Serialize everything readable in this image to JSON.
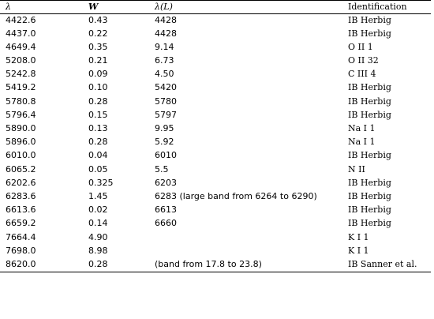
{
  "headers": {
    "lambda": "λ",
    "w": "W",
    "lambda_l": "λ(L)",
    "identification": "Identification"
  },
  "rows": [
    {
      "lambda": "4422.6",
      "w": "0.43",
      "lambda_l": "4428",
      "id": "IB Herbig"
    },
    {
      "lambda": "4437.0",
      "w": "0.22",
      "lambda_l": "4428",
      "id": "IB Herbig"
    },
    {
      "lambda": "4649.4",
      "w": "0.35",
      "lambda_l": "9.14",
      "id": "O II 1"
    },
    {
      "lambda": "5208.0",
      "w": "0.21",
      "lambda_l": "6.73",
      "id": "O II 32"
    },
    {
      "lambda": "5242.8",
      "w": "0.09",
      "lambda_l": "4.50",
      "id": "C III 4"
    },
    {
      "lambda": "5419.2",
      "w": "0.10",
      "lambda_l": "5420",
      "id": "IB Herbig"
    },
    {
      "lambda": "5780.8",
      "w": "0.28",
      "lambda_l": "5780",
      "id": "IB Herbig"
    },
    {
      "lambda": "5796.4",
      "w": "0.15",
      "lambda_l": "5797",
      "id": "IB Herbig"
    },
    {
      "lambda": "5890.0",
      "w": "0.13",
      "lambda_l": "9.95",
      "id": "Na I 1"
    },
    {
      "lambda": "5896.0",
      "w": "0.28",
      "lambda_l": "5.92",
      "id": "Na I 1"
    },
    {
      "lambda": "6010.0",
      "w": "0.04",
      "lambda_l": "6010",
      "id": "IB Herbig"
    },
    {
      "lambda": "6065.2",
      "w": "0.05",
      "lambda_l": "5.5",
      "id": "N II"
    },
    {
      "lambda": "6202.6",
      "w": "0.325",
      "lambda_l": "6203",
      "id": "IB Herbig"
    },
    {
      "lambda": "6283.6",
      "w": "1.45",
      "lambda_l": "6283 (large band from 6264 to 6290)",
      "id": "IB Herbig"
    },
    {
      "lambda": "6613.6",
      "w": "0.02",
      "lambda_l": "6613",
      "id": "IB Herbig"
    },
    {
      "lambda": "6659.2",
      "w": "0.14",
      "lambda_l": "6660",
      "id": "IB Herbig"
    },
    {
      "lambda": "7664.4",
      "w": "4.90",
      "lambda_l": "",
      "id": "K I 1"
    },
    {
      "lambda": "7698.0",
      "w": "8.98",
      "lambda_l": "",
      "id": "K I 1"
    },
    {
      "lambda": "8620.0",
      "w": "0.28",
      "lambda_l": "(band from 17.8 to 23.8)",
      "id": "IB Sanner et al."
    }
  ]
}
